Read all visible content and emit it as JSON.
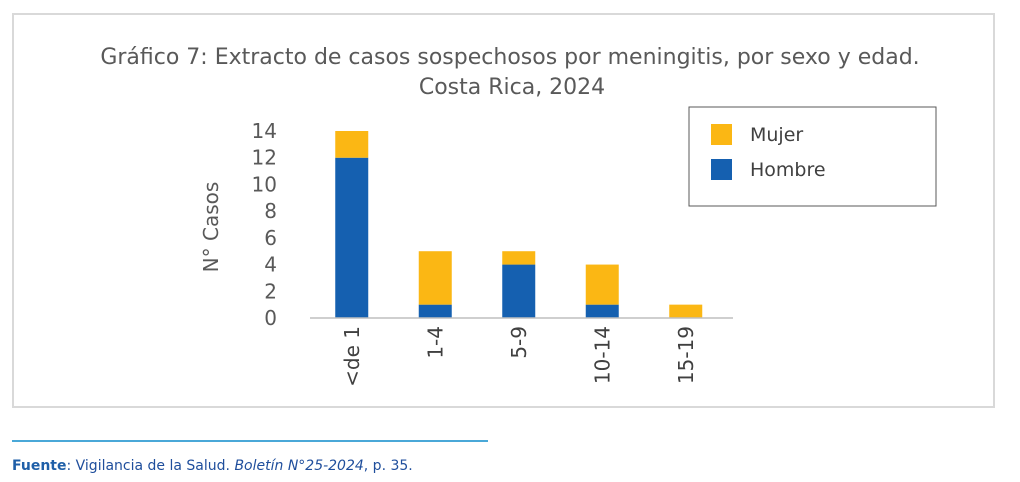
{
  "chart_data": {
    "type": "bar",
    "stacked": true,
    "title_line1": "Gráfico 7: Extracto de casos sospechosos por meningitis, por sexo y edad.",
    "title_line2": "Costa Rica, 2024",
    "ylabel": "N° Casos",
    "xlabel": "",
    "ylim": [
      0,
      14
    ],
    "yticks": [
      "0",
      "2",
      "4",
      "6",
      "8",
      "10",
      "12",
      "14"
    ],
    "categories": [
      "<de 1",
      "1-4",
      "5-9",
      "10-14",
      "15-19"
    ],
    "series": [
      {
        "name": "Hombre",
        "color": "#1560b0",
        "values": [
          12,
          1,
          4,
          1,
          0
        ]
      },
      {
        "name": "Mujer",
        "color": "#fbb714",
        "values": [
          2,
          4,
          1,
          3,
          1
        ]
      }
    ],
    "legend": [
      {
        "name": "Mujer",
        "color": "#fbb714"
      },
      {
        "name": "Hombre",
        "color": "#1560b0"
      }
    ],
    "legend_position": "top-right"
  },
  "source": {
    "label": "Fuente",
    "text1": ": Vigilancia de la Salud. ",
    "italic": "Boletín N°25-2024",
    "text2": ", p. 35."
  }
}
